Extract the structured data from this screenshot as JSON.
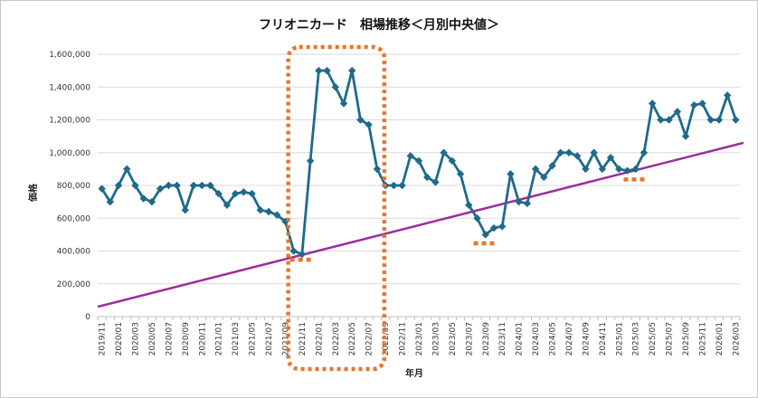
{
  "chart_data": {
    "type": "line",
    "title": "フリオニカード　相場推移＜月別中央値＞",
    "xlabel": "年月",
    "ylabel": "価格",
    "ylim": [
      0,
      1600000
    ],
    "yticks": [
      "0",
      "200,000",
      "400,000",
      "600,000",
      "800,000",
      "1,000,000",
      "1,200,000",
      "1,400,000",
      "1,600,000"
    ],
    "grid": true,
    "legend": "none",
    "colors": {
      "series": "#1f6a8a",
      "trend": "#9b2f9e",
      "highlight": "#e8762d",
      "grid": "#d9d9d9"
    },
    "x": [
      "2019/11",
      "2019/12",
      "2020/01",
      "2020/02",
      "2020/03",
      "2020/04",
      "2020/05",
      "2020/06",
      "2020/07",
      "2020/08",
      "2020/09",
      "2020/10",
      "2020/11",
      "2020/12",
      "2021/01",
      "2021/02",
      "2021/03",
      "2021/04",
      "2021/05",
      "2021/06",
      "2021/07",
      "2021/08",
      "2021/09",
      "2021/10",
      "2021/11",
      "2021/12",
      "2022/01",
      "2022/02",
      "2022/03",
      "2022/04",
      "2022/05",
      "2022/06",
      "2022/07",
      "2022/08",
      "2022/09",
      "2022/10",
      "2022/11",
      "2022/12",
      "2023/01",
      "2023/02",
      "2023/03",
      "2023/04",
      "2023/05",
      "2023/06",
      "2023/07",
      "2023/08",
      "2023/09",
      "2023/10",
      "2023/11",
      "2023/12",
      "2024/01",
      "2024/02",
      "2024/03",
      "2024/04",
      "2024/05",
      "2024/06",
      "2024/07",
      "2024/08",
      "2024/09",
      "2024/10",
      "2024/11",
      "2024/12",
      "2025/01",
      "2025/02",
      "2025/03",
      "2025/04",
      "2025/05",
      "2025/06",
      "2025/07",
      "2025/08",
      "2025/09",
      "2025/10",
      "2025/11",
      "2025/12",
      "2026/01",
      "2026/02",
      "2026/03"
    ],
    "xtick_labels": [
      "2019/11",
      "2020/01",
      "2020/03",
      "2020/05",
      "2020/07",
      "2020/09",
      "2020/11",
      "2021/01",
      "2021/03",
      "2021/05",
      "2021/07",
      "2021/09",
      "2021/11",
      "2022/01",
      "2022/03",
      "2022/05",
      "2022/07",
      "2022/09",
      "2022/11",
      "2023/01",
      "2023/03",
      "2023/05",
      "2023/07",
      "2023/09",
      "2023/11",
      "2024/01",
      "2024/03",
      "2024/05",
      "2024/07",
      "2024/09",
      "2024/11",
      "2025/01",
      "2025/03",
      "2025/05",
      "2025/07",
      "2025/09",
      "2025/11",
      "2026/01",
      "2026/03"
    ],
    "series": [
      {
        "values": [
          780000,
          700000,
          800000,
          900000,
          800000,
          720000,
          700000,
          780000,
          800000,
          800000,
          650000,
          800000,
          800000,
          800000,
          750000,
          680000,
          750000,
          760000,
          750000,
          650000,
          640000,
          620000,
          580000,
          400000,
          380000,
          950000,
          1500000,
          1500000,
          1400000,
          1300000,
          1500000,
          1200000,
          1170000,
          900000,
          800000,
          800000,
          800000,
          980000,
          950000,
          850000,
          820000,
          1000000,
          950000,
          870000,
          680000,
          600000,
          500000,
          540000,
          550000,
          870000,
          700000,
          690000,
          900000,
          850000,
          920000,
          1000000,
          1000000,
          980000,
          900000,
          1000000,
          900000,
          970000,
          900000,
          890000,
          900000,
          1000000,
          1300000,
          1200000,
          1200000,
          1250000,
          1100000,
          1290000,
          1300000,
          1200000,
          1200000,
          1350000,
          1200000
        ]
      }
    ],
    "trendline": {
      "start": 60000,
      "end": 1060000
    },
    "highlights": [
      {
        "type": "box",
        "from": "2021/10",
        "to": "2022/08"
      },
      {
        "type": "dash",
        "from": "2021/10",
        "to": "2021/12",
        "value": 380000
      },
      {
        "type": "dash",
        "from": "2023/08",
        "to": "2023/10",
        "value": 480000
      },
      {
        "type": "dash",
        "from": "2025/02",
        "to": "2025/04",
        "value": 870000
      }
    ]
  }
}
